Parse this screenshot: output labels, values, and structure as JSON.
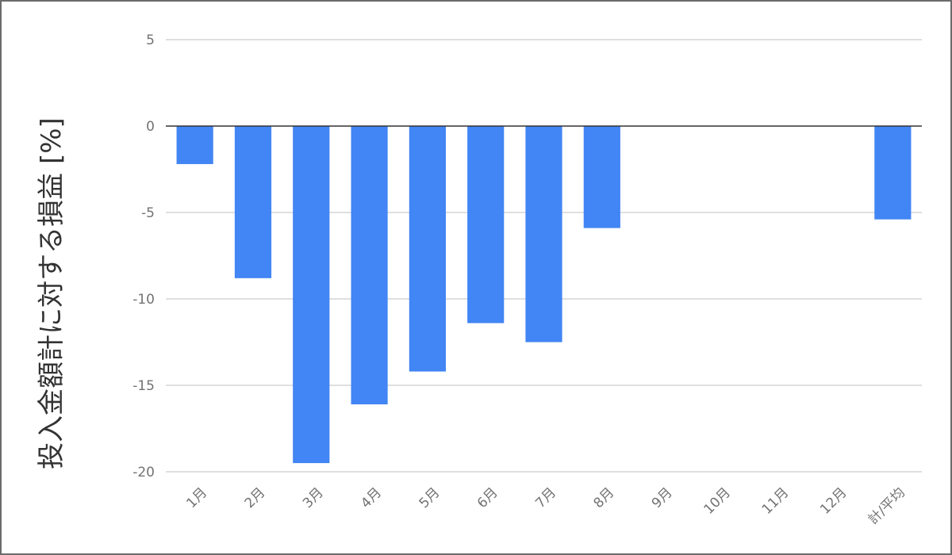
{
  "chart_data": {
    "type": "bar",
    "title": "",
    "xlabel": "",
    "ylabel": "投入金額計に対する損益 [%]",
    "ylim": [
      -20,
      5
    ],
    "yticks": [
      5,
      0,
      -5,
      -10,
      -15,
      -20
    ],
    "grid": true,
    "legend": "none",
    "bar_color": "#4285f4",
    "categories": [
      "1月",
      "2月",
      "3月",
      "4月",
      "5月",
      "6月",
      "7月",
      "8月",
      "9月",
      "10月",
      "11月",
      "12月",
      "計/平均"
    ],
    "values": [
      -2.2,
      -8.8,
      -19.5,
      -16.1,
      -14.2,
      -11.4,
      -12.5,
      -5.9,
      null,
      null,
      null,
      null,
      -5.4
    ]
  }
}
